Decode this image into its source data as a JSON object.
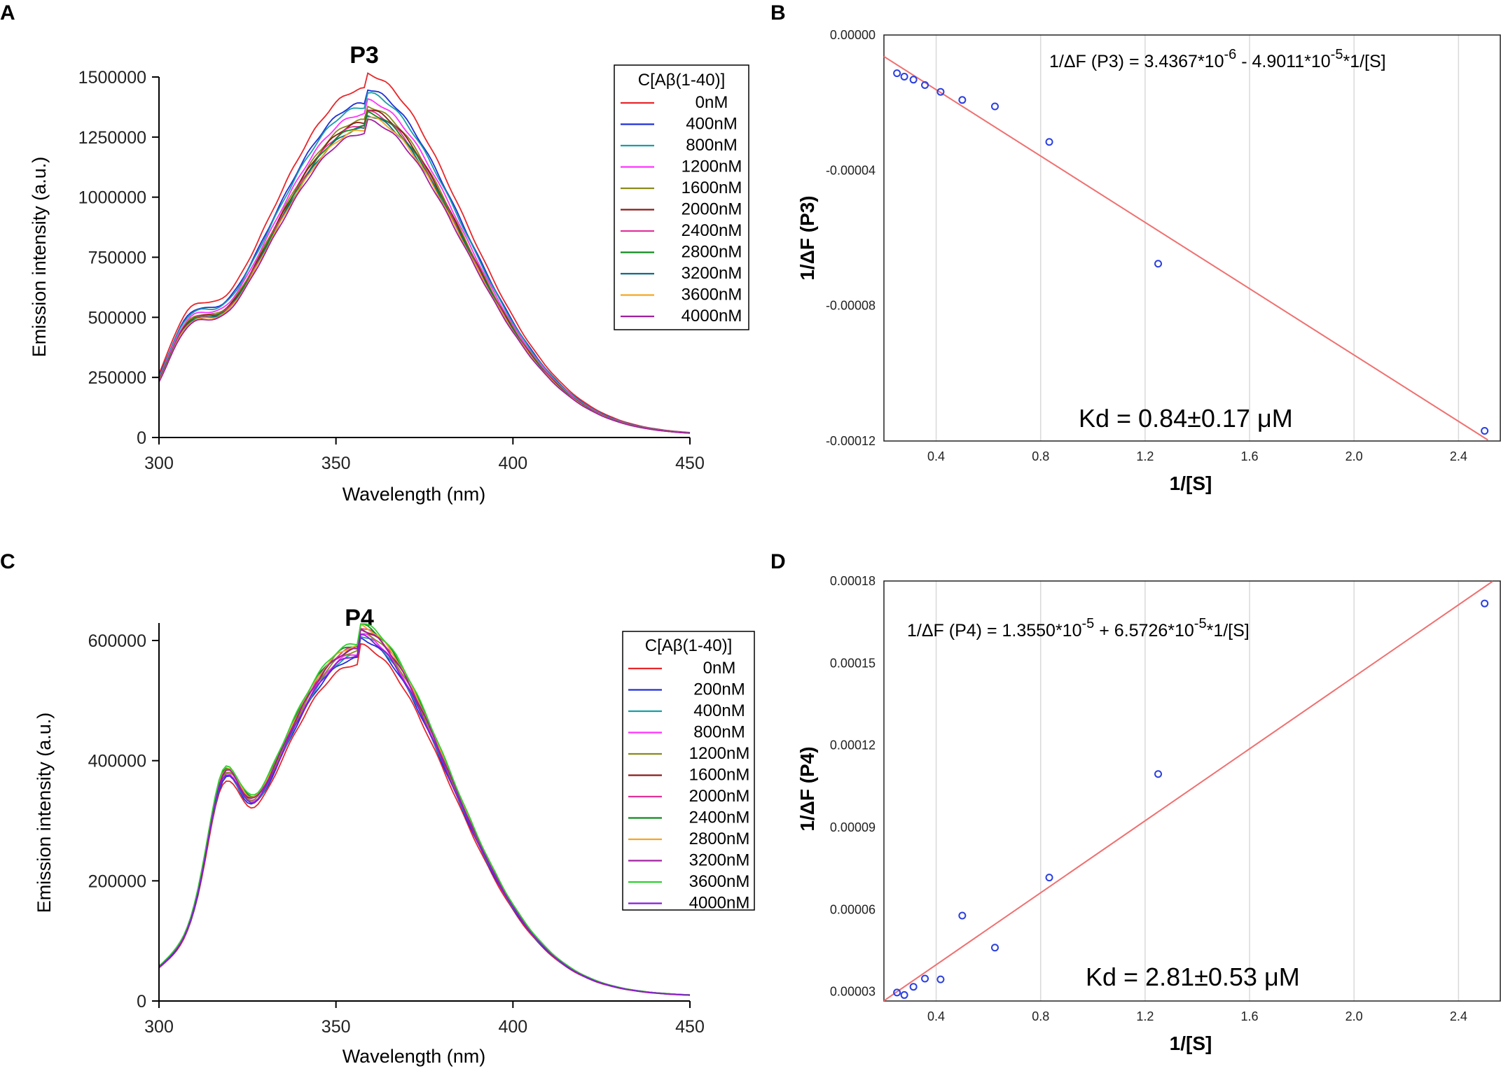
{
  "chart_data": [
    {
      "type": "line",
      "panel": "A",
      "title": "P3",
      "xlabel": "Wavelength (nm)",
      "ylabel": "Emission intensity (a.u.)",
      "xlim": [
        300,
        450
      ],
      "ylim": [
        0,
        1500000
      ],
      "xticks": [
        "300",
        "350",
        "400",
        "450"
      ],
      "yticks": [
        "0",
        "250000",
        "500000",
        "750000",
        "1000000",
        "1250000",
        "1500000"
      ],
      "legend_title": "C[Aβ(1-40)]",
      "legend_position": "top-right",
      "x": [
        300,
        305,
        310,
        315,
        320,
        325,
        330,
        335,
        340,
        345,
        350,
        355,
        358,
        360,
        365,
        370,
        375,
        380,
        385,
        390,
        395,
        400,
        405,
        410,
        415,
        420,
        425,
        430,
        435,
        440,
        445,
        450
      ],
      "series": [
        {
          "name": "0nM",
          "color": "#e8262a",
          "peak": 1450000
        },
        {
          "name": "400nM",
          "color": "#1f2fd6",
          "peak": 1390000
        },
        {
          "name": "800nM",
          "color": "#179ea6",
          "peak": 1375000
        },
        {
          "name": "1200nM",
          "color": "#ff33ff",
          "peak": 1345000
        },
        {
          "name": "1600nM",
          "color": "#8a8a1a",
          "peak": 1320000
        },
        {
          "name": "2000nM",
          "color": "#8b1a1a",
          "peak": 1310000
        },
        {
          "name": "2400nM",
          "color": "#e0339a",
          "peak": 1300000
        },
        {
          "name": "2800nM",
          "color": "#0f8a1e",
          "peak": 1295000
        },
        {
          "name": "3200nM",
          "color": "#0c6b8a",
          "peak": 1285000
        },
        {
          "name": "3600nM",
          "color": "#f5a623",
          "peak": 1280000
        },
        {
          "name": "4000nM",
          "color": "#a020a0",
          "peak": 1265000
        }
      ]
    },
    {
      "type": "scatter",
      "panel": "B",
      "xlabel": "1/[S]",
      "ylabel": "1/ΔF (P3)",
      "xlim": [
        0.2,
        2.56
      ],
      "ylim": [
        -0.00012,
        0.0
      ],
      "xticks": [
        "0.4",
        "0.8",
        "1.2",
        "1.6",
        "2.0",
        "2.4"
      ],
      "yticks": [
        "0.00000",
        "-0.00004",
        "-0.00008",
        "-0.00012"
      ],
      "equation_main": "1/ΔF (P3) = 3.4367*10",
      "equation_exp1": "-6",
      "equation_mid": " - 4.9011*10",
      "equation_exp2": "-5",
      "equation_tail": "*1/[S]",
      "kd": "Kd = 0.84±0.17 μM",
      "fit": {
        "intercept": 3.4367e-06,
        "slope": -4.9011e-05
      },
      "x": [
        0.25,
        0.278,
        0.313,
        0.357,
        0.417,
        0.5,
        0.625,
        0.833,
        1.25,
        2.5
      ],
      "y": [
        -1.13e-05,
        -1.23e-05,
        -1.32e-05,
        -1.48e-05,
        -1.68e-05,
        -1.92e-05,
        -2.11e-05,
        -3.16e-05,
        -6.76e-05,
        -0.000117
      ]
    },
    {
      "type": "line",
      "panel": "C",
      "title": "P4",
      "xlabel": "Wavelength (nm)",
      "ylabel": "Emission intensity (a.u.)",
      "xlim": [
        300,
        450
      ],
      "ylim": [
        0,
        600000
      ],
      "xticks": [
        "300",
        "350",
        "400",
        "450"
      ],
      "yticks": [
        "0",
        "200000",
        "400000",
        "600000"
      ],
      "legend_title": "C[Aβ(1-40)]",
      "legend_position": "right",
      "x": [
        300,
        305,
        310,
        315,
        318,
        322,
        326,
        330,
        335,
        340,
        345,
        350,
        355,
        360,
        365,
        370,
        375,
        380,
        385,
        390,
        395,
        400,
        405,
        410,
        415,
        420,
        425,
        430,
        435,
        440,
        445,
        450
      ],
      "series": [
        {
          "name": "0nM",
          "color": "#e8262a",
          "peak": 560000
        },
        {
          "name": "200nM",
          "color": "#1f2fd6",
          "peak": 570000
        },
        {
          "name": "400nM",
          "color": "#179ea6",
          "peak": 575000
        },
        {
          "name": "800nM",
          "color": "#ff33ff",
          "peak": 578000
        },
        {
          "name": "1200nM",
          "color": "#8a8a1a",
          "peak": 582000
        },
        {
          "name": "1600nM",
          "color": "#8b1a1a",
          "peak": 585000
        },
        {
          "name": "2000nM",
          "color": "#e0339a",
          "peak": 588000
        },
        {
          "name": "2400nM",
          "color": "#0f8a1e",
          "peak": 592000
        },
        {
          "name": "2800nM",
          "color": "#f5a623",
          "peak": 590000
        },
        {
          "name": "3200nM",
          "color": "#a020a0",
          "peak": 585000
        },
        {
          "name": "3600nM",
          "color": "#2ed12e",
          "peak": 595000
        },
        {
          "name": "4000nM",
          "color": "#8a1ad6",
          "peak": 575000
        }
      ]
    },
    {
      "type": "scatter",
      "panel": "D",
      "xlabel": "1/[S]",
      "ylabel": "1/ΔF (P4)",
      "xlim": [
        0.2,
        2.56
      ],
      "ylim": [
        2.661e-05,
        0.00018
      ],
      "xticks": [
        "0.4",
        "0.8",
        "1.2",
        "1.6",
        "2.0",
        "2.4"
      ],
      "yticks": [
        "0.00003",
        "0.00006",
        "0.00009",
        "0.00012",
        "0.00015",
        "0.00018"
      ],
      "equation_main": "1/ΔF (P4) = 1.3550*10",
      "equation_exp1": "-5",
      "equation_mid": " + 6.5726*10",
      "equation_exp2": "-5",
      "equation_tail": "*1/[S]",
      "kd": "Kd = 2.81±0.53 μM",
      "fit": {
        "intercept": 1.355e-05,
        "slope": 6.5726e-05
      },
      "x": [
        0.25,
        0.278,
        0.313,
        0.357,
        0.417,
        0.5,
        0.625,
        0.833,
        1.25,
        2.5
      ],
      "y": [
        2.97e-05,
        2.88e-05,
        3.18e-05,
        3.48e-05,
        3.45e-05,
        5.78e-05,
        4.61e-05,
        7.17e-05,
        0.0001095,
        0.0001718
      ]
    }
  ]
}
